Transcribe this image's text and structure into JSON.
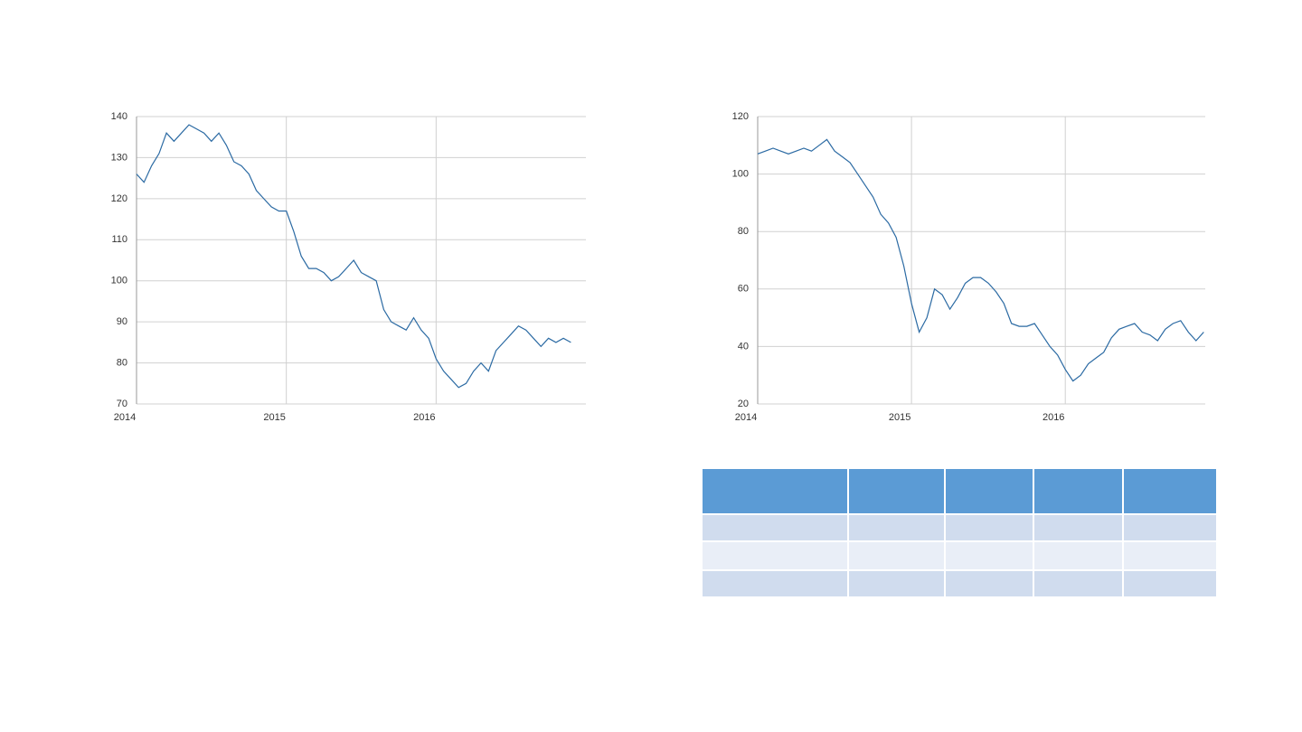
{
  "chart_data": [
    {
      "type": "line",
      "color": "#2b6aa3",
      "grid": true,
      "xlim": [
        2014,
        2017
      ],
      "xticks": [
        2014,
        2015,
        2016
      ],
      "ylim": [
        70,
        140
      ],
      "yticks": [
        70,
        80,
        90,
        100,
        110,
        120,
        130,
        140
      ],
      "x": [
        2014.0,
        2014.05,
        2014.1,
        2014.15,
        2014.2,
        2014.25,
        2014.3,
        2014.35,
        2014.4,
        2014.45,
        2014.5,
        2014.55,
        2014.6,
        2014.65,
        2014.7,
        2014.75,
        2014.8,
        2014.85,
        2014.9,
        2014.95,
        2015.0,
        2015.05,
        2015.1,
        2015.15,
        2015.2,
        2015.25,
        2015.3,
        2015.35,
        2015.4,
        2015.45,
        2015.5,
        2015.55,
        2015.6,
        2015.65,
        2015.7,
        2015.75,
        2015.8,
        2015.85,
        2015.9,
        2015.95,
        2016.0,
        2016.05,
        2016.1,
        2016.15,
        2016.2,
        2016.25,
        2016.3,
        2016.35,
        2016.4,
        2016.45,
        2016.5,
        2016.55,
        2016.6,
        2016.65,
        2016.7,
        2016.75,
        2016.8,
        2016.85,
        2016.9
      ],
      "values": [
        126,
        124,
        128,
        131,
        136,
        134,
        136,
        138,
        137,
        136,
        134,
        136,
        133,
        129,
        128,
        126,
        122,
        120,
        118,
        117,
        117,
        112,
        106,
        103,
        103,
        102,
        100,
        101,
        103,
        105,
        102,
        101,
        100,
        93,
        90,
        89,
        88,
        91,
        88,
        86,
        81,
        78,
        76,
        74,
        75,
        78,
        80,
        78,
        83,
        85,
        87,
        89,
        88,
        86,
        84,
        86,
        85,
        86,
        85
      ]
    },
    {
      "type": "line",
      "color": "#2b6aa3",
      "grid": true,
      "xlim": [
        2014,
        2016.91
      ],
      "xticks": [
        2014,
        2015,
        2016
      ],
      "ylim": [
        20,
        120
      ],
      "yticks": [
        20,
        40,
        60,
        80,
        100,
        120
      ],
      "x": [
        2014.0,
        2014.05,
        2014.1,
        2014.15,
        2014.2,
        2014.25,
        2014.3,
        2014.35,
        2014.4,
        2014.45,
        2014.5,
        2014.55,
        2014.6,
        2014.65,
        2014.7,
        2014.75,
        2014.8,
        2014.85,
        2014.9,
        2014.95,
        2015.0,
        2015.05,
        2015.1,
        2015.15,
        2015.2,
        2015.25,
        2015.3,
        2015.35,
        2015.4,
        2015.45,
        2015.5,
        2015.55,
        2015.6,
        2015.65,
        2015.7,
        2015.75,
        2015.8,
        2015.85,
        2015.9,
        2015.95,
        2016.0,
        2016.05,
        2016.1,
        2016.15,
        2016.2,
        2016.25,
        2016.3,
        2016.35,
        2016.4,
        2016.45,
        2016.5,
        2016.55,
        2016.6,
        2016.65,
        2016.7,
        2016.75,
        2016.8,
        2016.85,
        2016.9
      ],
      "values": [
        107,
        108,
        109,
        108,
        107,
        108,
        109,
        108,
        110,
        112,
        108,
        106,
        104,
        100,
        96,
        92,
        86,
        83,
        78,
        68,
        55,
        45,
        50,
        60,
        58,
        53,
        57,
        62,
        64,
        64,
        62,
        59,
        55,
        48,
        47,
        47,
        48,
        44,
        40,
        37,
        32,
        28,
        30,
        34,
        36,
        38,
        43,
        46,
        47,
        48,
        45,
        44,
        42,
        46,
        48,
        49,
        45,
        42,
        45
      ]
    }
  ]
}
